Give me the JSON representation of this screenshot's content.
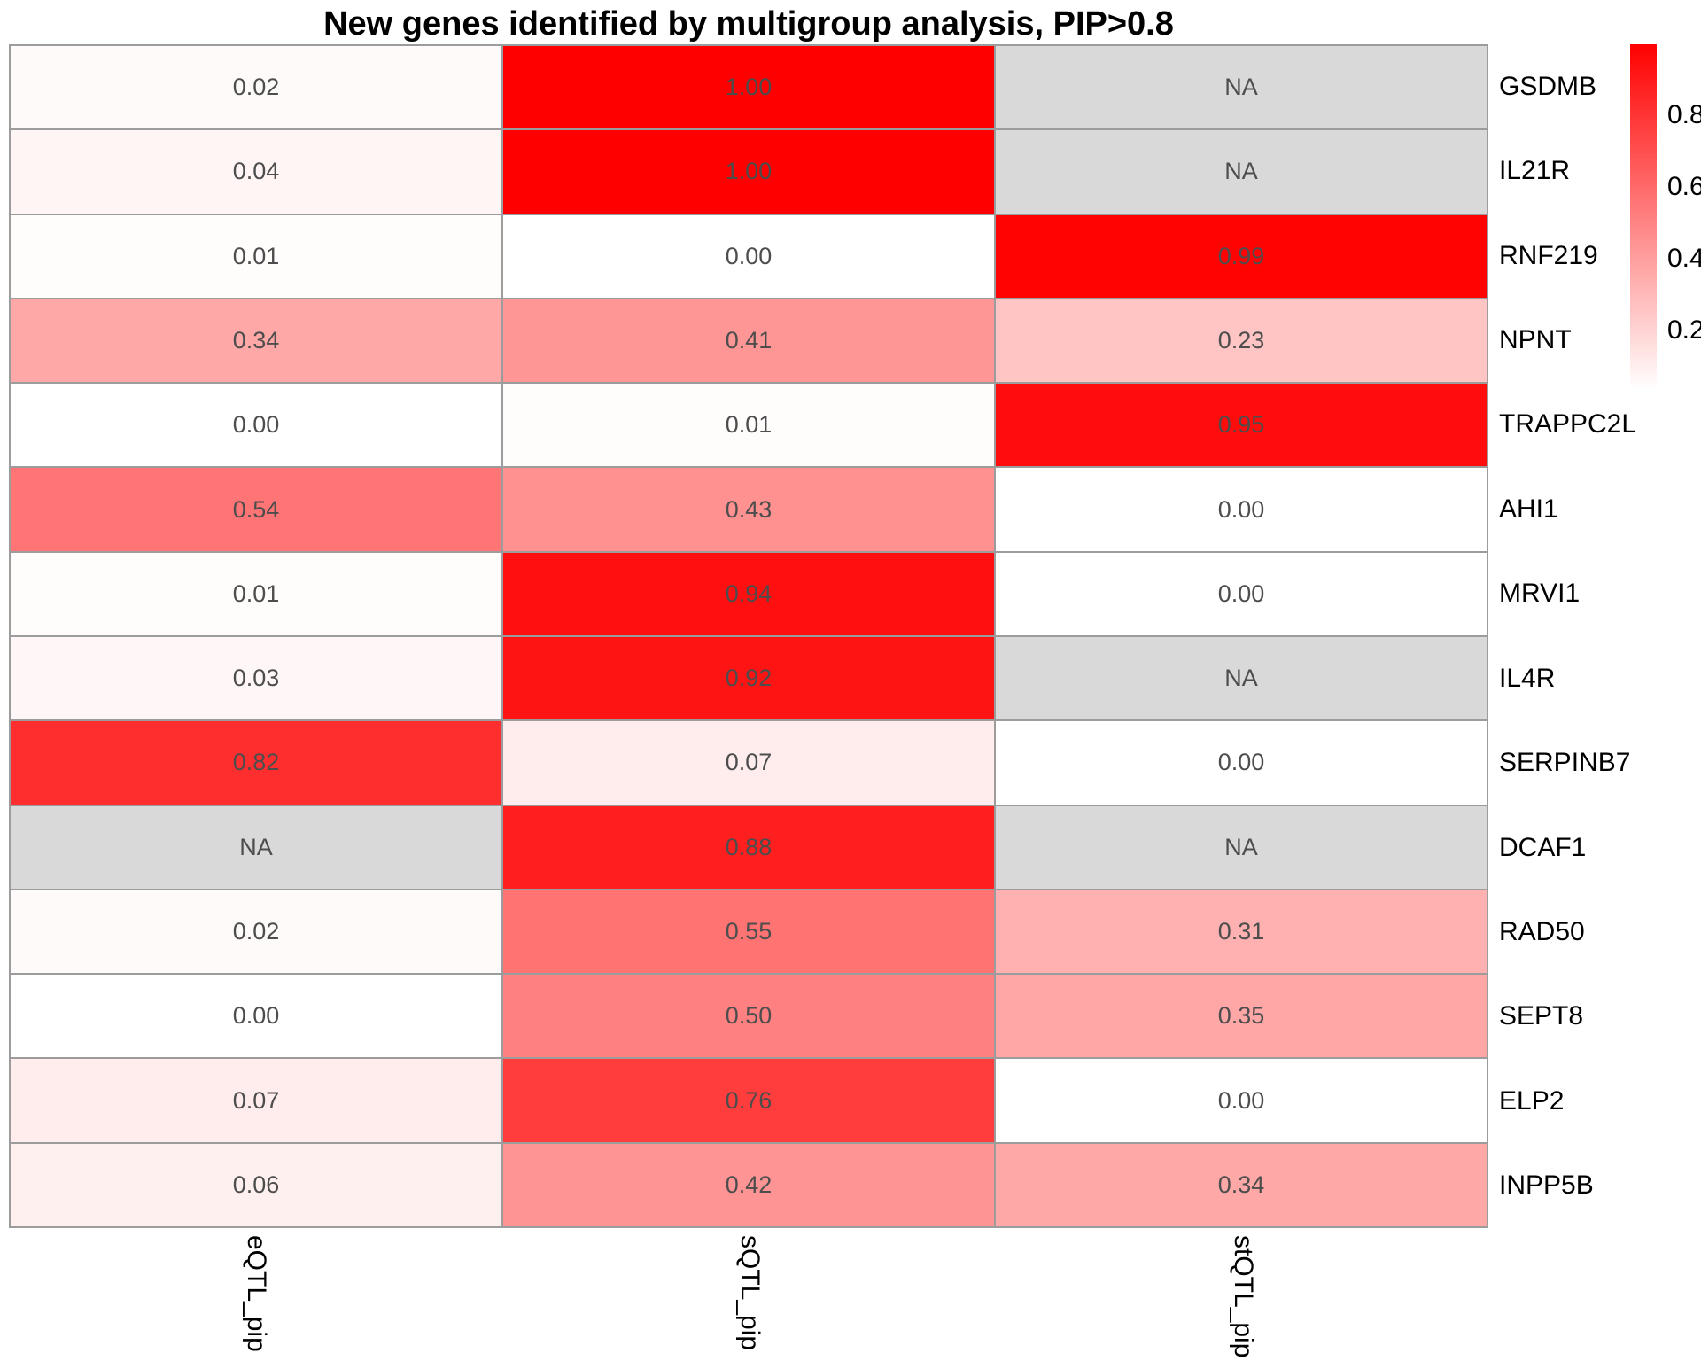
{
  "chart_data": {
    "type": "heatmap",
    "title": "New genes identified by multigroup analysis, PIP>0.8",
    "columns": [
      "eQTL_pip",
      "sQTL_pip",
      "stQTL_pip"
    ],
    "rows": [
      "GSDMB",
      "IL21R",
      "RNF219",
      "NPNT",
      "TRAPPC2L",
      "AHI1",
      "MRVI1",
      "IL4R",
      "SERPINB7",
      "DCAF1",
      "RAD50",
      "SEPT8",
      "ELP2",
      "INPP5B"
    ],
    "values": [
      [
        0.02,
        1.0,
        null
      ],
      [
        0.04,
        1.0,
        null
      ],
      [
        0.01,
        0.0,
        0.99
      ],
      [
        0.34,
        0.41,
        0.23
      ],
      [
        0.0,
        0.01,
        0.95
      ],
      [
        0.54,
        0.43,
        0.0
      ],
      [
        0.01,
        0.94,
        0.0
      ],
      [
        0.03,
        0.92,
        null
      ],
      [
        0.82,
        0.07,
        0.0
      ],
      [
        null,
        0.88,
        null
      ],
      [
        0.02,
        0.55,
        0.31
      ],
      [
        0.0,
        0.5,
        0.35
      ],
      [
        0.07,
        0.76,
        0.0
      ],
      [
        0.06,
        0.42,
        0.34
      ]
    ],
    "cell_labels": [
      [
        "0.02",
        "1.00",
        "NA"
      ],
      [
        "0.04",
        "1.00",
        "NA"
      ],
      [
        "0.01",
        "0.00",
        "0.99"
      ],
      [
        "0.34",
        "0.41",
        "0.23"
      ],
      [
        "0.00",
        "0.01",
        "0.95"
      ],
      [
        "0.54",
        "0.43",
        "0.00"
      ],
      [
        "0.01",
        "0.94",
        "0.00"
      ],
      [
        "0.03",
        "0.92",
        "NA"
      ],
      [
        "0.82",
        "0.07",
        "0.00"
      ],
      [
        "NA",
        "0.88",
        "NA"
      ],
      [
        "0.02",
        "0.55",
        "0.31"
      ],
      [
        "0.00",
        "0.50",
        "0.35"
      ],
      [
        "0.07",
        "0.76",
        "0.00"
      ],
      [
        "0.06",
        "0.42",
        "0.34"
      ]
    ],
    "legend": {
      "tick_labels": [
        "0.8",
        "0.6",
        "0.4",
        "0.2"
      ],
      "range_min": 0,
      "range_max": 1,
      "position": "right"
    },
    "grid_on": true,
    "colors": {
      "scale_low": "#FFFFFF",
      "scale_high": "#FF0000",
      "na_fill": "#D9D9D9",
      "grid_border": "#9C9C9C",
      "cell_text": "#4D4D4D",
      "label_text": "#000000"
    }
  }
}
